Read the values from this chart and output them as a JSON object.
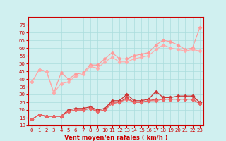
{
  "x": [
    0,
    1,
    2,
    3,
    4,
    5,
    6,
    7,
    8,
    9,
    10,
    11,
    12,
    13,
    14,
    15,
    16,
    17,
    18,
    19,
    20,
    21,
    22,
    23
  ],
  "series": [
    {
      "color": "#ff9999",
      "linewidth": 0.8,
      "marker": "D",
      "markersize": 2.5,
      "values": [
        38,
        46,
        45,
        31,
        44,
        40,
        43,
        44,
        49,
        49,
        53,
        57,
        53,
        53,
        55,
        56,
        57,
        62,
        65,
        64,
        62,
        59,
        60,
        73
      ]
    },
    {
      "color": "#ffaaaa",
      "linewidth": 0.8,
      "marker": "D",
      "markersize": 2.5,
      "values": [
        38,
        46,
        45,
        31,
        37,
        38,
        42,
        43,
        48,
        47,
        51,
        54,
        51,
        51,
        53,
        54,
        55,
        59,
        62,
        60,
        59,
        58,
        59,
        58
      ]
    },
    {
      "color": "#cc3333",
      "linewidth": 0.9,
      "marker": "D",
      "markersize": 2.5,
      "values": [
        14,
        17,
        16,
        16,
        16,
        20,
        21,
        21,
        22,
        20,
        21,
        26,
        26,
        30,
        26,
        26,
        27,
        32,
        28,
        28,
        29,
        29,
        29,
        25
      ]
    },
    {
      "color": "#dd4444",
      "linewidth": 0.8,
      "marker": "D",
      "markersize": 2.5,
      "values": [
        14,
        17,
        16,
        16,
        16,
        19,
        20,
        20,
        21,
        19,
        20,
        25,
        25,
        28,
        25,
        25,
        26,
        27,
        27,
        27,
        27,
        27,
        27,
        24
      ]
    },
    {
      "color": "#ee6666",
      "linewidth": 0.8,
      "marker": "D",
      "markersize": 2.5,
      "values": [
        14,
        17,
        16,
        16,
        16,
        19,
        20,
        20,
        21,
        19,
        20,
        24,
        25,
        27,
        25,
        25,
        26,
        26,
        27,
        27,
        27,
        27,
        27,
        24
      ]
    }
  ],
  "xlabel": "Vent moyen/en rafales ( km/h )",
  "ylabel": "",
  "xlim": [
    -0.5,
    23.5
  ],
  "ylim": [
    10,
    80
  ],
  "yticks": [
    10,
    15,
    20,
    25,
    30,
    35,
    40,
    45,
    50,
    55,
    60,
    65,
    70,
    75
  ],
  "xticks": [
    0,
    1,
    2,
    3,
    4,
    5,
    6,
    7,
    8,
    9,
    10,
    11,
    12,
    13,
    14,
    15,
    16,
    17,
    18,
    19,
    20,
    21,
    22,
    23
  ],
  "bg_color": "#d0f0f0",
  "grid_color": "#aadddd",
  "axis_color": "#cc0000",
  "label_color": "#cc0000",
  "arrow_color": "#cc0000"
}
